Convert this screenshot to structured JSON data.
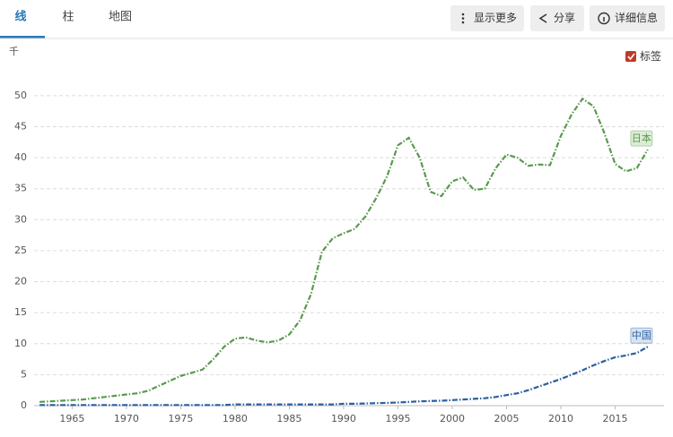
{
  "tabs": [
    "线",
    "柱",
    "地图"
  ],
  "buttons": [
    "显示更多",
    "分享",
    "详细信息"
  ],
  "legend_toggle": "标签",
  "chart_data": {
    "type": "line",
    "y_unit": "千",
    "x": [
      1962,
      1963,
      1964,
      1965,
      1966,
      1967,
      1968,
      1969,
      1970,
      1971,
      1972,
      1973,
      1974,
      1975,
      1976,
      1977,
      1978,
      1979,
      1980,
      1981,
      1982,
      1983,
      1984,
      1985,
      1986,
      1987,
      1988,
      1989,
      1990,
      1991,
      1992,
      1993,
      1994,
      1995,
      1996,
      1997,
      1998,
      1999,
      2000,
      2001,
      2002,
      2003,
      2004,
      2005,
      2006,
      2007,
      2008,
      2009,
      2010,
      2011,
      2012,
      2013,
      2014,
      2015,
      2016,
      2017,
      2018
    ],
    "series": [
      {
        "name": "日本",
        "color": "#5a9a4e",
        "values": [
          0.6,
          0.7,
          0.8,
          0.9,
          1.0,
          1.2,
          1.4,
          1.6,
          1.8,
          2.0,
          2.4,
          3.2,
          4.0,
          4.8,
          5.3,
          5.8,
          7.5,
          9.5,
          10.8,
          11.0,
          10.5,
          10.2,
          10.5,
          11.5,
          13.8,
          18.0,
          24.8,
          27.0,
          27.8,
          28.5,
          30.5,
          33.5,
          37.0,
          42.0,
          43.2,
          40.0,
          34.5,
          33.8,
          36.2,
          36.8,
          34.8,
          35.0,
          38.3,
          40.5,
          40.0,
          38.7,
          38.9,
          38.8,
          43.5,
          47.0,
          49.5,
          48.3,
          44.0,
          39.0,
          37.8,
          38.3,
          41.3
        ]
      },
      {
        "name": "中国",
        "color": "#2c5f9e",
        "values": [
          0.1,
          0.1,
          0.1,
          0.1,
          0.1,
          0.1,
          0.1,
          0.1,
          0.1,
          0.1,
          0.1,
          0.1,
          0.1,
          0.1,
          0.1,
          0.1,
          0.1,
          0.1,
          0.2,
          0.2,
          0.2,
          0.2,
          0.2,
          0.2,
          0.2,
          0.2,
          0.2,
          0.2,
          0.3,
          0.3,
          0.35,
          0.4,
          0.45,
          0.5,
          0.6,
          0.7,
          0.75,
          0.8,
          0.9,
          1.0,
          1.1,
          1.2,
          1.4,
          1.7,
          2.0,
          2.5,
          3.1,
          3.7,
          4.3,
          5.0,
          5.7,
          6.5,
          7.2,
          7.8,
          8.1,
          8.5,
          9.5
        ]
      }
    ],
    "xlim": [
      1961.5,
      2019.5
    ],
    "xticks": [
      1965,
      1970,
      1975,
      1980,
      1985,
      1990,
      1995,
      2000,
      2005,
      2010,
      2015
    ],
    "ylim": [
      0,
      52
    ],
    "yticks": [
      0,
      5,
      10,
      15,
      20,
      25,
      30,
      35,
      40,
      45,
      50
    ],
    "grid": true
  }
}
